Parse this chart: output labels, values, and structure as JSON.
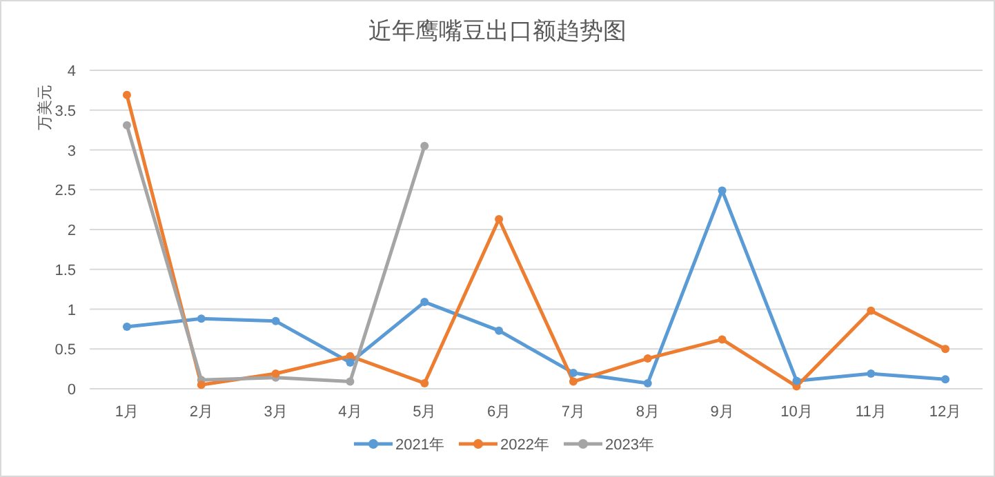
{
  "chart_data": {
    "type": "line",
    "title": "近年鹰嘴豆出口额趋势图",
    "ylabel": "万美元",
    "categories": [
      "1月",
      "2月",
      "3月",
      "4月",
      "5月",
      "6月",
      "7月",
      "8月",
      "9月",
      "10月",
      "11月",
      "12月"
    ],
    "series": [
      {
        "name": "2021年",
        "color": "#5b9bd5",
        "values": [
          0.78,
          0.88,
          0.85,
          0.33,
          1.09,
          0.73,
          0.2,
          0.07,
          2.49,
          0.1,
          0.19,
          0.12
        ]
      },
      {
        "name": "2022年",
        "color": "#ed7d31",
        "values": [
          3.69,
          0.05,
          0.19,
          0.41,
          0.07,
          2.13,
          0.09,
          0.38,
          0.62,
          0.03,
          0.98,
          0.5
        ]
      },
      {
        "name": "2023年",
        "color": "#a5a5a5",
        "values": [
          3.31,
          0.11,
          0.14,
          0.09,
          3.05,
          null,
          null,
          null,
          null,
          null,
          null,
          null
        ]
      }
    ],
    "ylim": [
      0,
      4
    ],
    "yticks": [
      0,
      0.5,
      1,
      1.5,
      2,
      2.5,
      3,
      3.5,
      4
    ],
    "grid": "y",
    "legend": "bottom",
    "marker": "circle",
    "line_style": "solid"
  }
}
